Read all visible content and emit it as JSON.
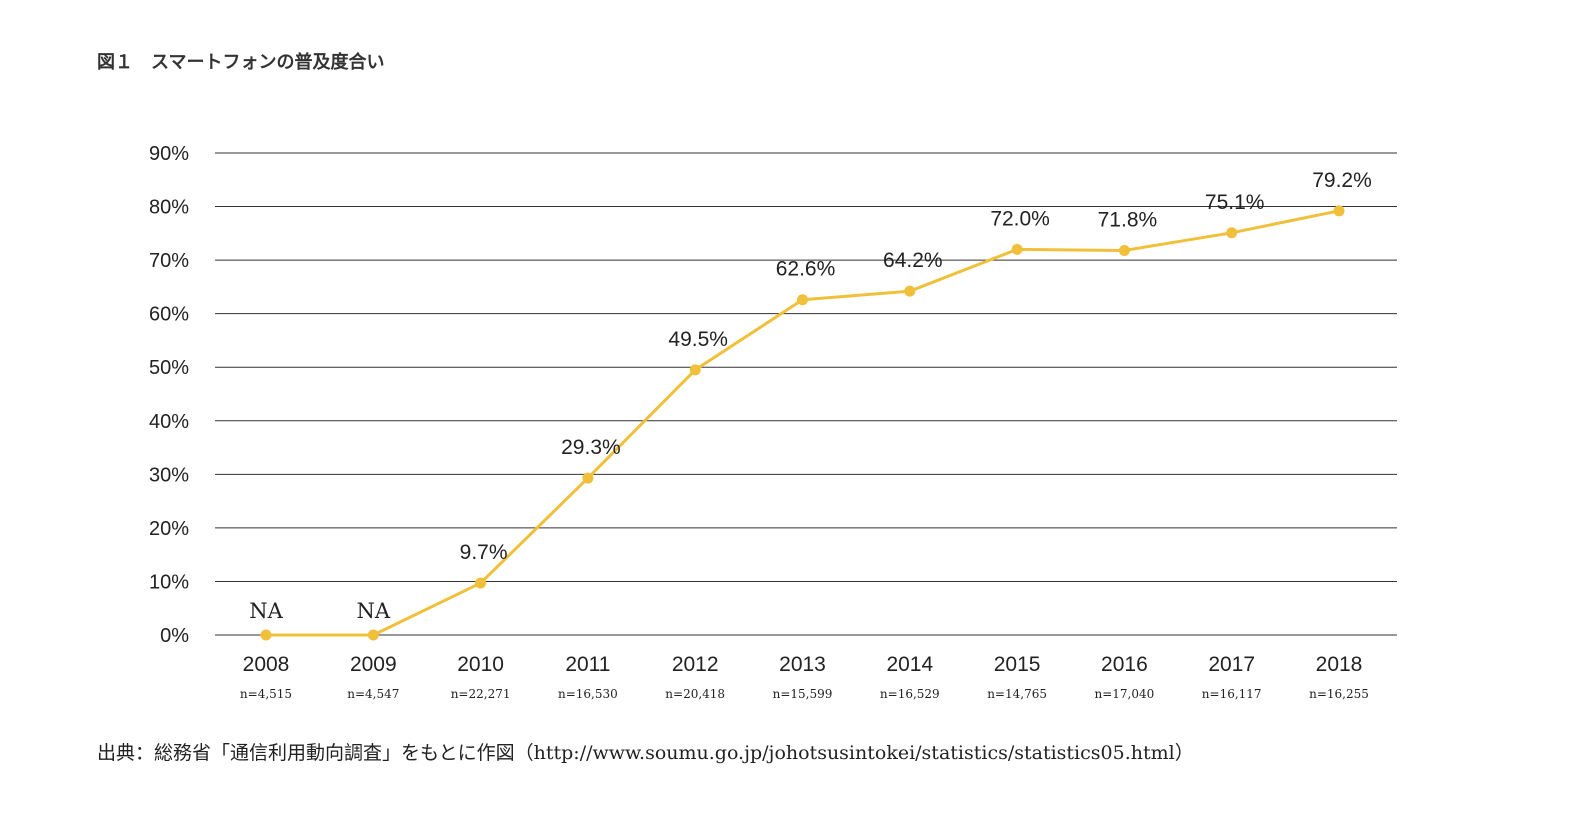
{
  "figure": {
    "title": "図１　スマートフォンの普及度合い",
    "source": "出典：総務省「通信利用動向調査」をもとに作図（http://www.soumu.go.jp/johotsusintokei/statistics/statistics05.html）"
  },
  "chart_data": {
    "type": "line",
    "title": "",
    "xlabel": "",
    "ylabel": "",
    "categories": [
      "2008",
      "2009",
      "2010",
      "2011",
      "2012",
      "2013",
      "2014",
      "2015",
      "2016",
      "2017",
      "2018"
    ],
    "sample_sizes": [
      "n=4,515",
      "n=4,547",
      "n=22,271",
      "n=16,530",
      "n=20,418",
      "n=15,599",
      "n=16,529",
      "n=14,765",
      "n=17,040",
      "n=16,117",
      "n=16,255"
    ],
    "series": [
      {
        "values": [
          0,
          0,
          9.7,
          29.3,
          49.5,
          62.6,
          64.2,
          72.0,
          71.8,
          75.1,
          79.2
        ],
        "labels": [
          "NA",
          "NA",
          "9.7%",
          "29.3%",
          "49.5%",
          "62.6%",
          "64.2%",
          "72.0%",
          "71.8%",
          "75.1%",
          "79.2%"
        ],
        "color": "#f0c03a"
      }
    ],
    "yticks": [
      "0%",
      "10%",
      "20%",
      "30%",
      "40%",
      "50%",
      "60%",
      "70%",
      "80%",
      "90%"
    ],
    "ylim": [
      0,
      90
    ],
    "grid": true,
    "legend": "none"
  }
}
